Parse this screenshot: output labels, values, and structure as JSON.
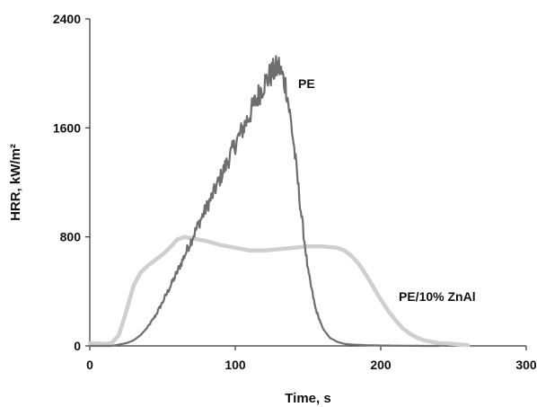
{
  "chart_data": {
    "type": "line",
    "title": "",
    "xlabel": "Time, s",
    "ylabel": "HRR, kW/m²",
    "xlim": [
      0,
      300
    ],
    "ylim": [
      0,
      2400
    ],
    "x_ticks": [
      "0",
      "100",
      "200",
      "300"
    ],
    "y_ticks": [
      "0",
      "800",
      "1600",
      "2400"
    ],
    "grid": false,
    "legend": "none",
    "series": [
      {
        "name": "PE",
        "color": "#6e6e6e",
        "noisy": true,
        "x": [
          0,
          15,
          20,
          25,
          30,
          35,
          40,
          45,
          50,
          55,
          60,
          65,
          70,
          75,
          80,
          85,
          90,
          95,
          100,
          105,
          110,
          115,
          120,
          125,
          130,
          135,
          140,
          145,
          150,
          155,
          160,
          165,
          170,
          175,
          180,
          190,
          200,
          210,
          220,
          230,
          240
        ],
        "y": [
          0,
          0,
          10,
          20,
          40,
          80,
          140,
          220,
          320,
          430,
          540,
          660,
          780,
          900,
          1010,
          1120,
          1240,
          1360,
          1480,
          1590,
          1700,
          1820,
          1930,
          2000,
          2050,
          1900,
          1500,
          1000,
          550,
          280,
          130,
          60,
          30,
          15,
          10,
          5,
          3,
          2,
          1,
          0,
          0
        ]
      },
      {
        "name": "PE/10% ZnAl",
        "color": "#cfcfcf",
        "noisy": false,
        "x": [
          0,
          10,
          15,
          20,
          25,
          30,
          35,
          40,
          45,
          50,
          55,
          60,
          65,
          70,
          75,
          80,
          90,
          100,
          110,
          120,
          130,
          140,
          150,
          160,
          170,
          175,
          180,
          185,
          190,
          195,
          200,
          205,
          210,
          215,
          220,
          225,
          230,
          240,
          250,
          260
        ],
        "y": [
          20,
          15,
          20,
          80,
          250,
          440,
          540,
          590,
          630,
          670,
          720,
          780,
          800,
          790,
          780,
          770,
          740,
          720,
          700,
          700,
          710,
          720,
          730,
          730,
          720,
          700,
          660,
          600,
          520,
          430,
          340,
          260,
          190,
          130,
          90,
          60,
          40,
          20,
          15,
          5
        ]
      }
    ]
  }
}
